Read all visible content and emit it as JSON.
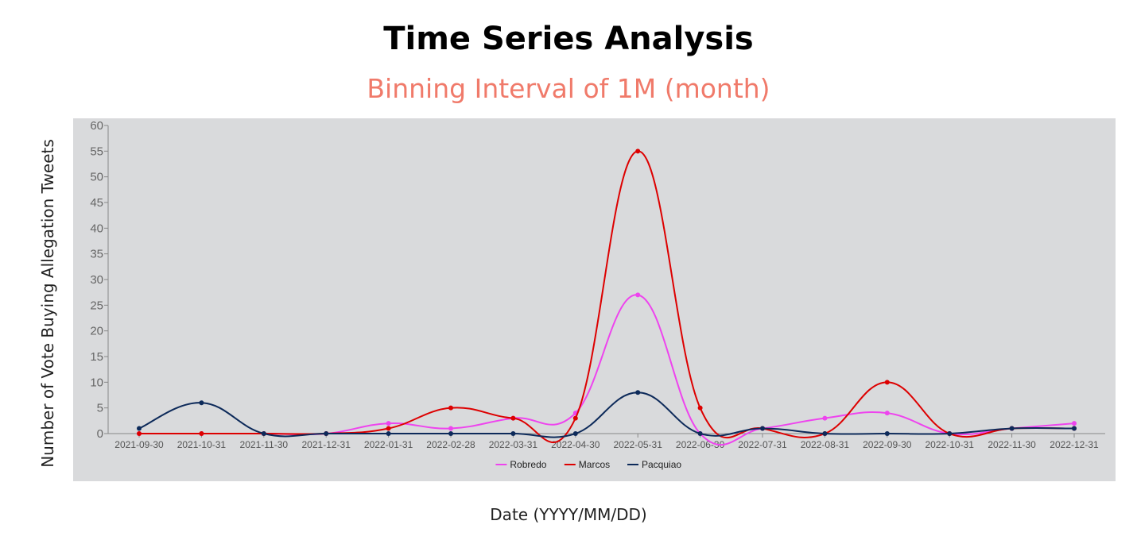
{
  "chart_data": {
    "type": "line",
    "title": "Time Series Analysis",
    "subtitle": "Binning Interval of 1M (month)",
    "xlabel": "Date (YYYY/MM/DD)",
    "ylabel": "Number of Vote Buying Allegation Tweets",
    "categories": [
      "2021-09-30",
      "2021-10-31",
      "2021-11-30",
      "2021-12-31",
      "2022-01-31",
      "2022-02-28",
      "2022-03-31",
      "2022-04-30",
      "2022-05-31",
      "2022-06-30",
      "2022-07-31",
      "2022-08-31",
      "2022-09-30",
      "2022-10-31",
      "2022-11-30",
      "2022-12-31"
    ],
    "ylim": [
      0,
      60
    ],
    "yticks": [
      0,
      5,
      10,
      15,
      20,
      25,
      30,
      35,
      40,
      45,
      50,
      55,
      60
    ],
    "legend_position": "bottom",
    "grid": false,
    "series": [
      {
        "name": "Robredo",
        "color": "#ee44ee",
        "values": [
          0,
          0,
          0,
          0,
          2,
          1,
          3,
          4,
          27,
          0,
          1,
          3,
          4,
          0,
          1,
          2
        ]
      },
      {
        "name": "Marcos",
        "color": "#dd0000",
        "values": [
          0,
          0,
          0,
          0,
          1,
          5,
          3,
          3,
          55,
          5,
          1,
          0,
          10,
          0,
          1,
          1
        ]
      },
      {
        "name": "Pacquiao",
        "color": "#0d2a5a",
        "values": [
          1,
          6,
          0,
          0,
          0,
          0,
          0,
          0,
          8,
          0,
          1,
          0,
          0,
          0,
          1,
          1
        ]
      }
    ]
  }
}
